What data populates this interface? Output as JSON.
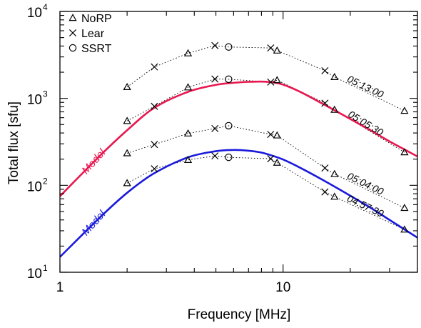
{
  "chart_data": {
    "type": "scatter",
    "xlabel": "Frequency [MHz]",
    "ylabel": "Total flux [sfu]",
    "xscale": "log",
    "yscale": "log",
    "xlim": [
      1,
      40
    ],
    "ylim": [
      10,
      10000
    ],
    "x_ticks": [
      {
        "value": 1,
        "label": "1"
      },
      {
        "value": 10,
        "label": "10"
      }
    ],
    "y_ticks": [
      {
        "value": 10,
        "base": "10",
        "exp": "1"
      },
      {
        "value": 100,
        "base": "10",
        "exp": "2"
      },
      {
        "value": 1000,
        "base": "10",
        "exp": "3"
      },
      {
        "value": 10000,
        "base": "10",
        "exp": "4"
      }
    ],
    "legend": {
      "placement": "top-left",
      "entries": [
        {
          "label": "NoRP",
          "marker": "triangle"
        },
        {
          "label": "Lear",
          "marker": "cross"
        },
        {
          "label": "SSRT",
          "marker": "circle"
        }
      ]
    },
    "series": [
      {
        "name": "05:13:00",
        "color": "#000000",
        "observations": [
          {
            "marker": "triangle",
            "x": 2.0,
            "y": 1350
          },
          {
            "marker": "cross",
            "x": 2.65,
            "y": 2300
          },
          {
            "marker": "triangle",
            "x": 3.75,
            "y": 3300
          },
          {
            "marker": "cross",
            "x": 4.95,
            "y": 4050
          },
          {
            "marker": "circle",
            "x": 5.7,
            "y": 3900
          },
          {
            "marker": "cross",
            "x": 8.8,
            "y": 3800
          },
          {
            "marker": "triangle",
            "x": 9.4,
            "y": 3550
          },
          {
            "marker": "cross",
            "x": 15.4,
            "y": 2080
          },
          {
            "marker": "triangle",
            "x": 17.0,
            "y": 1760
          },
          {
            "marker": "triangle",
            "x": 35.0,
            "y": 720
          }
        ]
      },
      {
        "name": "05:05:30",
        "color": "#000000",
        "observations": [
          {
            "marker": "triangle",
            "x": 2.0,
            "y": 550
          },
          {
            "marker": "cross",
            "x": 2.65,
            "y": 810
          },
          {
            "marker": "triangle",
            "x": 3.75,
            "y": 1340
          },
          {
            "marker": "cross",
            "x": 4.95,
            "y": 1670
          },
          {
            "marker": "circle",
            "x": 5.7,
            "y": 1660
          },
          {
            "marker": "cross",
            "x": 8.8,
            "y": 1540
          },
          {
            "marker": "triangle",
            "x": 9.4,
            "y": 1620
          },
          {
            "marker": "cross",
            "x": 15.4,
            "y": 880
          },
          {
            "marker": "triangle",
            "x": 17.0,
            "y": 740
          },
          {
            "marker": "triangle",
            "x": 35.0,
            "y": 240
          }
        ]
      },
      {
        "name": "05:04:00",
        "color": "#000000",
        "observations": [
          {
            "marker": "triangle",
            "x": 2.0,
            "y": 234
          },
          {
            "marker": "cross",
            "x": 2.65,
            "y": 295
          },
          {
            "marker": "triangle",
            "x": 3.75,
            "y": 395
          },
          {
            "marker": "cross",
            "x": 4.95,
            "y": 450
          },
          {
            "marker": "circle",
            "x": 5.7,
            "y": 485
          },
          {
            "marker": "cross",
            "x": 8.8,
            "y": 385
          },
          {
            "marker": "triangle",
            "x": 9.4,
            "y": 375
          },
          {
            "marker": "cross",
            "x": 15.4,
            "y": 158
          },
          {
            "marker": "triangle",
            "x": 17.0,
            "y": 135
          },
          {
            "marker": "triangle",
            "x": 35.0,
            "y": 55
          }
        ]
      },
      {
        "name": "04:57:30",
        "color": "#000000",
        "observations": [
          {
            "marker": "triangle",
            "x": 2.0,
            "y": 106
          },
          {
            "marker": "cross",
            "x": 2.65,
            "y": 155
          },
          {
            "marker": "triangle",
            "x": 3.75,
            "y": 196
          },
          {
            "marker": "cross",
            "x": 4.95,
            "y": 218
          },
          {
            "marker": "circle",
            "x": 5.7,
            "y": 210
          },
          {
            "marker": "cross",
            "x": 8.8,
            "y": 202
          },
          {
            "marker": "triangle",
            "x": 9.4,
            "y": 182
          },
          {
            "marker": "cross",
            "x": 15.4,
            "y": 84
          },
          {
            "marker": "triangle",
            "x": 17.0,
            "y": 74
          },
          {
            "marker": "triangle",
            "x": 35.0,
            "y": 31
          }
        ]
      }
    ],
    "models": [
      {
        "label": "Model",
        "color": "#e8174f",
        "x": [
          1,
          1.5,
          2,
          2.65,
          3.75,
          5,
          6,
          7,
          8,
          9,
          10,
          12,
          15,
          20,
          25,
          30,
          40
        ],
        "y": [
          75,
          215,
          430,
          780,
          1190,
          1430,
          1510,
          1550,
          1560,
          1530,
          1440,
          1180,
          870,
          580,
          420,
          320,
          215
        ]
      },
      {
        "label": "Model",
        "color": "#1a1adb",
        "x": [
          1,
          1.5,
          2,
          2.65,
          3.75,
          5,
          6,
          7,
          8,
          9,
          10,
          12,
          15,
          20,
          25,
          30,
          40
        ],
        "y": [
          15,
          42,
          82,
          138,
          210,
          247,
          255,
          250,
          238,
          218,
          198,
          158,
          116,
          76,
          54,
          40,
          25
        ]
      }
    ]
  }
}
